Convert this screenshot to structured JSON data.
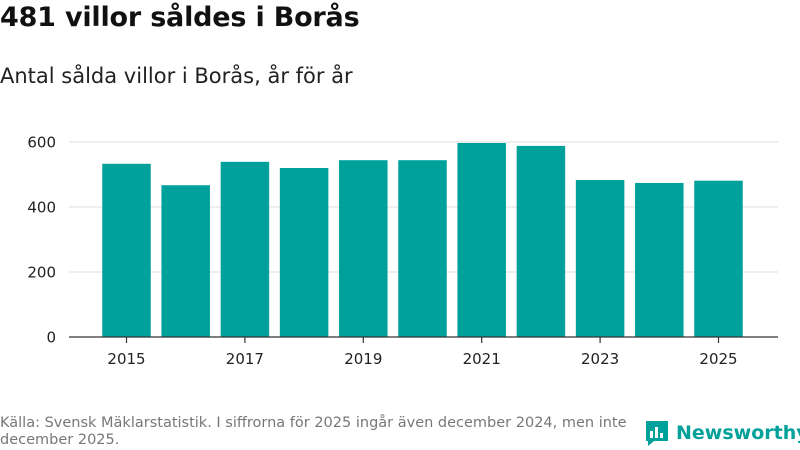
{
  "title": "481 villor såldes i Borås",
  "subtitle": "Antal sålda villor i Borås, år för år",
  "footnote": "Källa: Svensk Mäklarstatistik. I siffrorna för 2025 ingår även december 2024, men inte december 2025.",
  "brand": {
    "name": "Newsworthy",
    "icon": "newsworthy-logo-icon",
    "color": "#00a19a"
  },
  "colors": {
    "bar": "#00a19a",
    "grid": "#dddddd",
    "axis": "#333333",
    "tick_text": "#222222"
  },
  "chart_data": {
    "type": "bar",
    "title": "481 villor såldes i Borås",
    "subtitle": "Antal sålda villor i Borås, år för år",
    "xlabel": "",
    "ylabel": "",
    "categories": [
      "2015",
      "2016",
      "2017",
      "2018",
      "2019",
      "2020",
      "2021",
      "2022",
      "2023",
      "2024",
      "2025"
    ],
    "values": [
      533,
      467,
      539,
      520,
      544,
      544,
      597,
      588,
      483,
      474,
      481
    ],
    "x_tick_labels": [
      "2015",
      "2017",
      "2019",
      "2021",
      "2023",
      "2025"
    ],
    "y_ticks": [
      "0",
      "200",
      "400",
      "600"
    ],
    "ylim": [
      0,
      600
    ],
    "grid": true
  }
}
